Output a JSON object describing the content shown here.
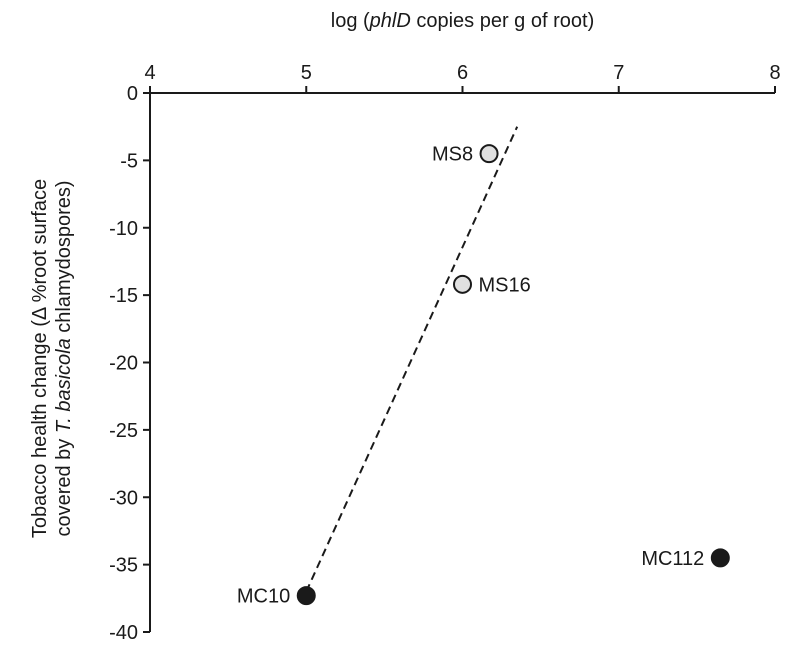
{
  "chart_data": {
    "type": "scatter",
    "x_axis": {
      "label_prefix": "log (",
      "label_italic": "phlD",
      "label_suffix": " copies per g of root)",
      "position": "top",
      "range": [
        4,
        8
      ],
      "ticks": [
        "4",
        "5",
        "6",
        "7",
        "8"
      ]
    },
    "y_axis": {
      "label_line1": "Tobacco health change (Δ %root surface",
      "label_line2_prefix": "covered by ",
      "label_line2_italic": "T. basicola",
      "label_line2_suffix": " chlamydospores)",
      "range": [
        -40,
        0
      ],
      "ticks": [
        "0",
        "-5",
        "-10",
        "-15",
        "-20",
        "-25",
        "-30",
        "-35",
        "-40"
      ]
    },
    "points": [
      {
        "label": "MS8",
        "x": 6.17,
        "y": -4.5,
        "fill": "#e0e0e0",
        "label_side": "left"
      },
      {
        "label": "MS16",
        "x": 6.0,
        "y": -14.2,
        "fill": "#e0e0e0",
        "label_side": "right"
      },
      {
        "label": "MC10",
        "x": 5.0,
        "y": -37.3,
        "fill": "#1a1a1a",
        "label_side": "left"
      },
      {
        "label": "MC112",
        "x": 7.65,
        "y": -34.5,
        "fill": "#1a1a1a",
        "label_side": "left"
      }
    ],
    "trendline": {
      "style": "dashed",
      "from": {
        "x": 5.0,
        "y": -37.0
      },
      "to": {
        "x": 6.35,
        "y": -2.5
      }
    },
    "grid": false,
    "legend": "none"
  }
}
